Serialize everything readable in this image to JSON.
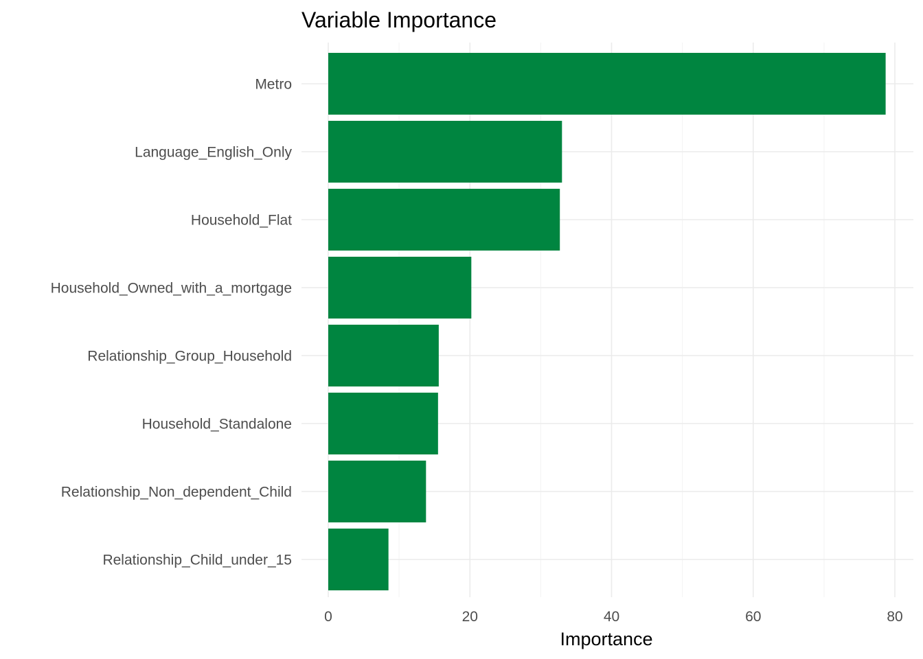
{
  "chart_data": {
    "type": "bar",
    "orientation": "horizontal",
    "title": "Variable Importance",
    "xlabel": "Importance",
    "ylabel": "",
    "categories": [
      "Metro",
      "Language_English_Only",
      "Household_Flat",
      "Household_Owned_with_a_mortgage",
      "Relationship_Group_Household",
      "Household_Standalone",
      "Relationship_Non_dependent_Child",
      "Relationship_Child_under_15"
    ],
    "values": [
      78.7,
      33.0,
      32.7,
      20.2,
      15.6,
      15.5,
      13.8,
      8.5
    ],
    "xlim": [
      0,
      80
    ],
    "x_ticks": [
      0,
      20,
      40,
      60,
      80
    ],
    "bar_color": "#008540",
    "grid": true,
    "legend": "none"
  }
}
